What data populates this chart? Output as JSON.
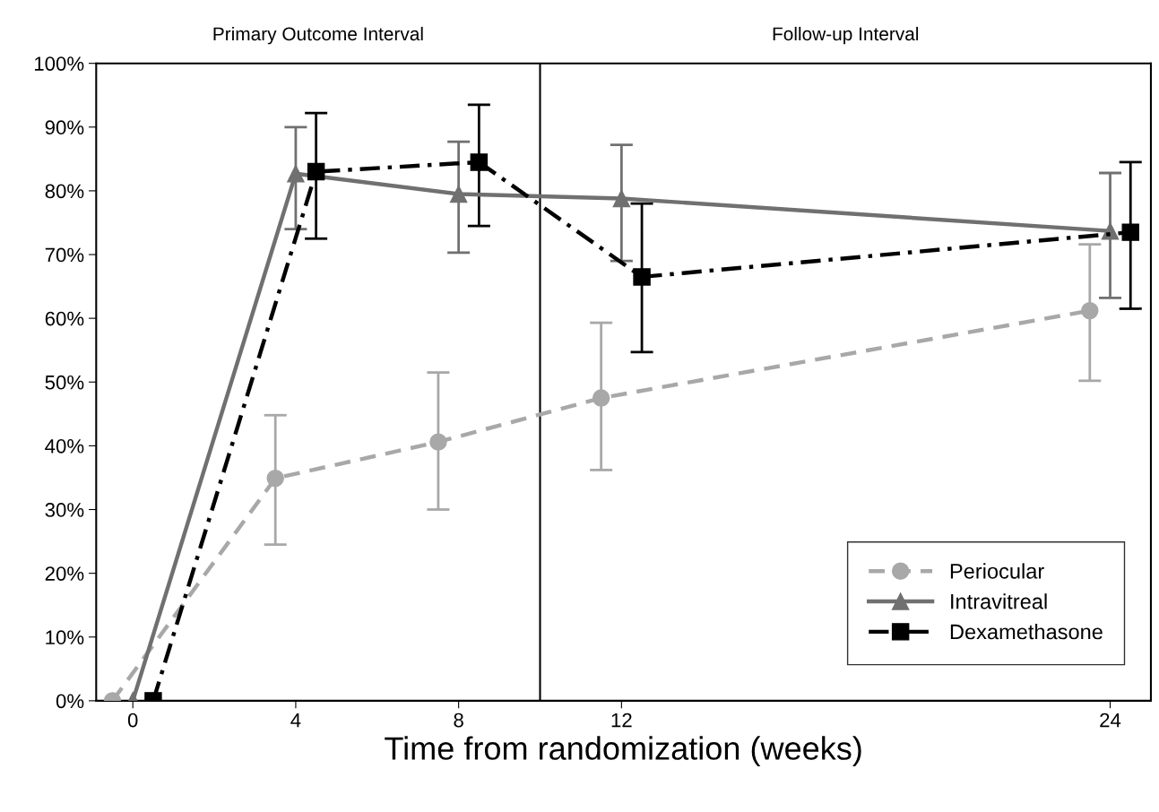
{
  "chart_data": {
    "type": "line",
    "xlabel": "Time from randomization (weeks)",
    "xlim": [
      -0.9,
      25
    ],
    "xticks": [
      0,
      4,
      8,
      12,
      24
    ],
    "ylim": [
      0,
      100
    ],
    "yticks": [
      {
        "value": 0,
        "label": "0%"
      },
      {
        "value": 10,
        "label": "10%"
      },
      {
        "value": 20,
        "label": "20%"
      },
      {
        "value": 30,
        "label": "30%"
      },
      {
        "value": 40,
        "label": "40%"
      },
      {
        "value": 50,
        "label": "50%"
      },
      {
        "value": 60,
        "label": "60%"
      },
      {
        "value": 70,
        "label": "70%"
      },
      {
        "value": 80,
        "label": "80%"
      },
      {
        "value": 90,
        "label": "90%"
      },
      {
        "value": 100,
        "label": "100%"
      }
    ],
    "grid": false,
    "legend": "bottom right",
    "ref_lines": [
      {
        "axis": "x",
        "value": 10,
        "color": "#000000",
        "line_style": "solid"
      }
    ],
    "annotations": [
      "Primary Outcome Interval",
      "Follow-up Interval"
    ],
    "series": [
      {
        "name": "Periocular",
        "color": "#a8a8a8",
        "marker": "circle",
        "line_style": "dashed",
        "x": [
          -0.5,
          3.5,
          7.5,
          11.5,
          23.5
        ],
        "values": [
          0,
          34.9,
          40.6,
          47.5,
          61.2
        ],
        "errors": [
          null,
          [
            24.5,
            44.8
          ],
          [
            30,
            51.5
          ],
          [
            36.2,
            59.3
          ],
          [
            50.2,
            71.6
          ]
        ]
      },
      {
        "name": "Intravitreal",
        "color": "#707070",
        "marker": "triangle",
        "line_style": "solid",
        "x": [
          0,
          4,
          8,
          12,
          24
        ],
        "values": [
          0,
          82.7,
          79.5,
          78.8,
          73.7
        ],
        "errors": [
          null,
          [
            74,
            90
          ],
          [
            70.3,
            87.7
          ],
          [
            69,
            87.2
          ],
          [
            63.2,
            82.8
          ]
        ]
      },
      {
        "name": "Dexamethasone",
        "color": "#000000",
        "marker": "square",
        "line_style": "dashdot",
        "x": [
          0.5,
          4.5,
          8.5,
          12.5,
          24.5
        ],
        "values": [
          0,
          83,
          84.5,
          66.5,
          73.5
        ],
        "errors": [
          null,
          [
            72.5,
            92.2
          ],
          [
            74.5,
            93.5
          ],
          [
            54.7,
            78
          ],
          [
            61.5,
            84.5
          ]
        ]
      }
    ]
  }
}
